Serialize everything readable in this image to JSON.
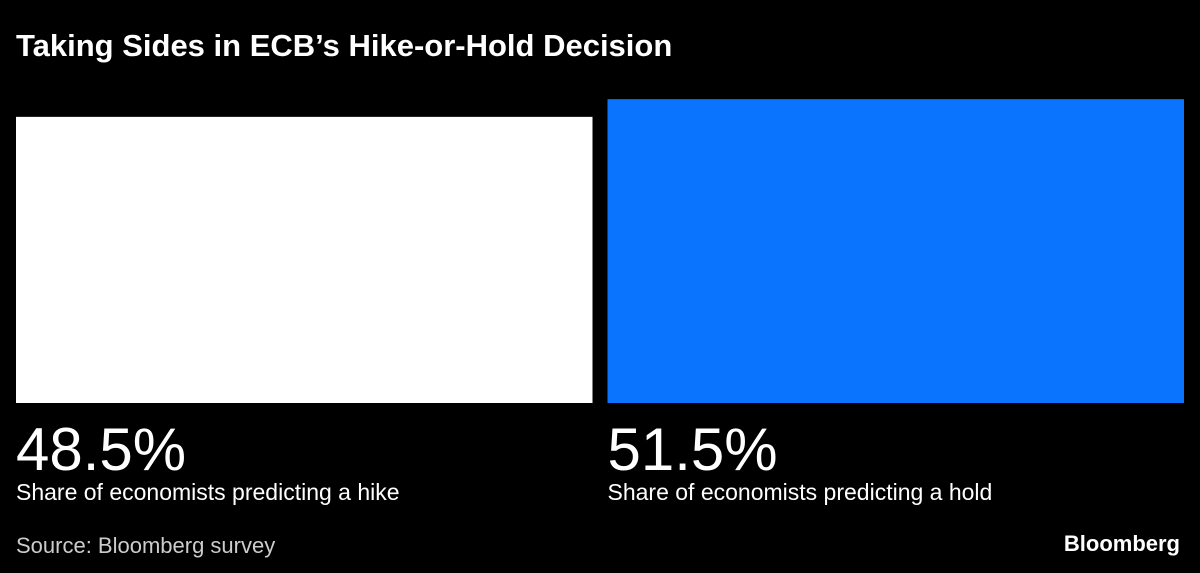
{
  "chart_data": {
    "type": "bar",
    "title": "Taking Sides in ECB’s Hike-or-Hold Decision",
    "categories": [
      "Share of economists predicting a hike",
      "Share of economists predicting a hold"
    ],
    "values": [
      48.5,
      51.5
    ],
    "value_labels": [
      "48.5%",
      "51.5%"
    ],
    "colors": [
      "#ffffff",
      "#0a74ff"
    ],
    "source": "Source: Bloomberg survey",
    "brand": "Bloomberg"
  }
}
